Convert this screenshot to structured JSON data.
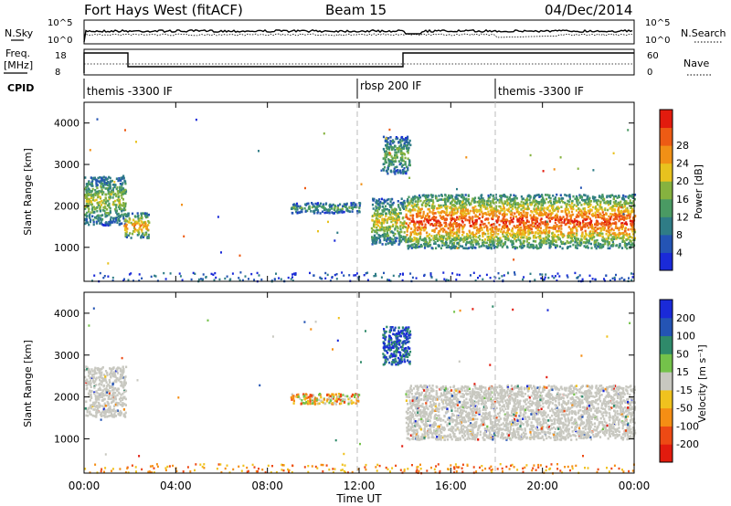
{
  "header": {
    "title": "Fort Hays West (fitACF)",
    "beam": "Beam 15",
    "date": "04/Dec/2014"
  },
  "strip_labels": {
    "nsky": "N.Sky",
    "nsky_axis": [
      "10^5",
      "10^0"
    ],
    "nsearch": "N.Search",
    "nsearch_axis": [
      "10^5",
      "10^0"
    ],
    "freq_line1": "Freq.",
    "freq_line2": "[MHz]",
    "freq_axis": [
      "18",
      "8"
    ],
    "nave": "Nave",
    "nave_axis": [
      "60",
      "0"
    ],
    "cpid": "CPID"
  },
  "cpid_segments": [
    {
      "label": "themis -3300 IF",
      "start_hour": 0
    },
    {
      "label": "rbsp 200 IF",
      "start_hour": 12
    },
    {
      "label": "themis -3300 IF",
      "start_hour": 18
    }
  ],
  "x_axis": {
    "label": "Time UT",
    "ticks": [
      "00:00",
      "04:00",
      "08:00",
      "12:00",
      "16:00",
      "20:00",
      "00:00"
    ],
    "range_hours": [
      0,
      24
    ]
  },
  "chart_data": [
    {
      "type": "heatmap",
      "panel": "power",
      "ylabel": "Slant Range [km]",
      "yticks": [
        1000,
        2000,
        3000,
        4000
      ],
      "ylim": [
        180,
        4500
      ],
      "colorbar": {
        "label": "Power [dB]",
        "ticks": [
          "4",
          "8",
          "12",
          "16",
          "20",
          "24",
          "28"
        ],
        "colors": [
          "#1a2ad8",
          "#2454b4",
          "#2f7c86",
          "#4a9a63",
          "#86b23f",
          "#e8c21e",
          "#f19016",
          "#ed5b14",
          "#e21b0e"
        ]
      },
      "regions": [
        {
          "t0": 0.0,
          "t1": 1.8,
          "r0": 1550,
          "r1": 2750,
          "level": 0.35
        },
        {
          "t0": 1.7,
          "t1": 2.8,
          "r0": 1250,
          "r1": 1850,
          "level": 0.5
        },
        {
          "t0": 9.0,
          "t1": 12.0,
          "r0": 1850,
          "r1": 2100,
          "level": 0.25
        },
        {
          "t0": 13.0,
          "t1": 14.2,
          "r0": 2800,
          "r1": 3700,
          "level": 0.3
        },
        {
          "t0": 12.5,
          "t1": 14.0,
          "r0": 1100,
          "r1": 2200,
          "level": 0.4
        },
        {
          "t0": 14.0,
          "t1": 24.0,
          "r0": 1000,
          "r1": 2300,
          "level": 0.6
        }
      ]
    },
    {
      "type": "heatmap",
      "panel": "velocity",
      "ylabel": "Slant Range [km]",
      "yticks": [
        1000,
        2000,
        3000,
        4000
      ],
      "ylim": [
        180,
        4500
      ],
      "colorbar": {
        "label": "Velocity [m s⁻¹]",
        "ticks": [
          "200",
          "100",
          "50",
          "15",
          "-15",
          "-50",
          "-100",
          "-200"
        ],
        "colors": [
          "#1a2ad8",
          "#2454b4",
          "#2f8a6a",
          "#74c24a",
          "#c8c8c0",
          "#f0c21e",
          "#f58e14",
          "#ed4a14",
          "#e21b0e"
        ]
      },
      "regions": [
        {
          "t0": 0.0,
          "t1": 1.8,
          "r0": 1550,
          "r1": 2750,
          "vel": "ground"
        },
        {
          "t0": 9.0,
          "t1": 12.0,
          "r0": 1850,
          "r1": 2100,
          "vel": "mixed"
        },
        {
          "t0": 13.0,
          "t1": 14.2,
          "r0": 2800,
          "r1": 3700,
          "vel": "toward"
        },
        {
          "t0": 14.0,
          "t1": 24.0,
          "r0": 1000,
          "r1": 2300,
          "vel": "ground"
        }
      ]
    }
  ]
}
